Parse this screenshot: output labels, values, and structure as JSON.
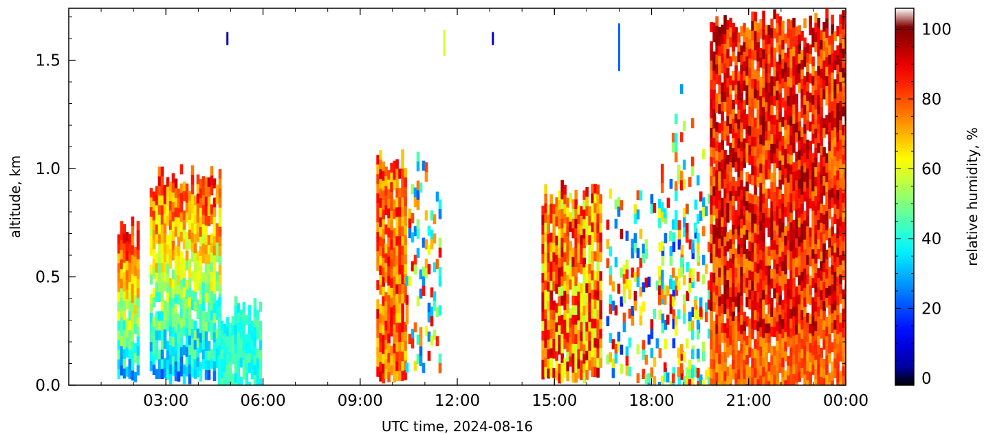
{
  "chart_data": {
    "type": "heatmap",
    "title": "",
    "xlabel": "UTC time,  2024-08-16",
    "ylabel": "altitude, km",
    "x_ticks": [
      "03:00",
      "06:00",
      "09:00",
      "12:00",
      "15:00",
      "18:00",
      "21:00",
      "00:00"
    ],
    "x_tick_hours": [
      3,
      6,
      9,
      12,
      15,
      18,
      21,
      24
    ],
    "xlim_hours": [
      0,
      24
    ],
    "y_ticks": [
      "0.0",
      "0.5",
      "1.0",
      "1.5"
    ],
    "y_tick_values": [
      0.0,
      0.5,
      1.0,
      1.5
    ],
    "ylim_km": [
      0,
      1.74
    ],
    "colorbar": {
      "label": "relative humidity, %",
      "ticks": [
        "0",
        "20",
        "40",
        "60",
        "80",
        "100"
      ],
      "tick_values": [
        0,
        20,
        40,
        60,
        80,
        100
      ],
      "range": [
        -2,
        106
      ],
      "colormap": "jet",
      "under_color": "#000000",
      "over_color": "#ffffff"
    },
    "regions": [
      {
        "name": "early-morning-block",
        "x_hours": [
          1.5,
          2.1
        ],
        "y_km": [
          0.05,
          0.78
        ],
        "rh_low": 30,
        "rh_high": 90
      },
      {
        "name": "morning-main",
        "x_hours": [
          2.5,
          4.7
        ],
        "y_km": [
          0.05,
          1.02
        ],
        "rh_low": 30,
        "rh_high": 85
      },
      {
        "name": "morning-low-layer",
        "x_hours": [
          4.6,
          5.9
        ],
        "y_km": [
          0.0,
          0.42
        ],
        "rh_low": 35,
        "rh_high": 48
      },
      {
        "name": "mid-morning",
        "x_hours": [
          9.5,
          10.4
        ],
        "y_km": [
          0.05,
          1.1
        ],
        "rh_low": 65,
        "rh_high": 92
      },
      {
        "name": "late-morning-sparse",
        "x_hours": [
          10.4,
          11.5
        ],
        "y_km": [
          0.1,
          1.1
        ],
        "rh_low": 20,
        "rh_high": 90
      },
      {
        "name": "afternoon-block",
        "x_hours": [
          14.6,
          16.4
        ],
        "y_km": [
          0.05,
          0.95
        ],
        "rh_low": 55,
        "rh_high": 95
      },
      {
        "name": "afternoon-sparse",
        "x_hours": [
          16.6,
          19.5
        ],
        "y_km": [
          0.0,
          1.0
        ],
        "rh_low": 15,
        "rh_high": 95
      },
      {
        "name": "evening-sparse",
        "x_hours": [
          18.2,
          20.0
        ],
        "y_km": [
          0.0,
          1.45
        ],
        "rh_low": 25,
        "rh_high": 92
      },
      {
        "name": "evening-dense",
        "x_hours": [
          19.8,
          24.0
        ],
        "y_km": [
          0.0,
          1.74
        ],
        "rh_low": 72,
        "rh_high": 100
      }
    ],
    "isolated_marks": [
      {
        "x_hours": 4.9,
        "y_km": [
          1.57,
          1.63
        ],
        "rh": 5
      },
      {
        "x_hours": 11.6,
        "y_km": [
          1.52,
          1.64
        ],
        "rh": 58
      },
      {
        "x_hours": 13.1,
        "y_km": [
          1.57,
          1.63
        ],
        "rh": 8
      },
      {
        "x_hours": 17.0,
        "y_km": [
          1.45,
          1.67
        ],
        "rh": 22
      }
    ]
  }
}
